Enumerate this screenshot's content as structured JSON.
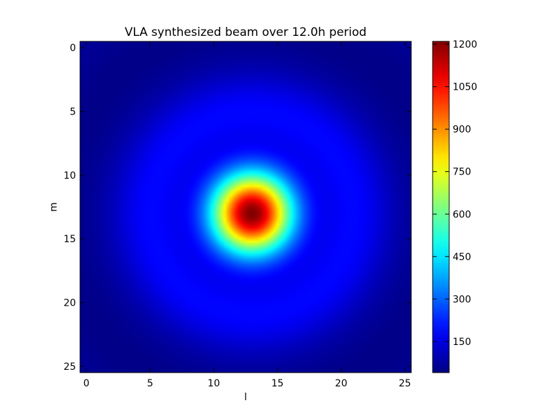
{
  "chart_data": {
    "type": "heatmap",
    "title": "VLA synthesized beam over 12.0h period",
    "xlabel": "l",
    "ylabel": "m",
    "grid_size": [
      26,
      26
    ],
    "x_range": [
      -0.5,
      25.5
    ],
    "y_range": [
      -0.5,
      25.5
    ],
    "y_inverted": true,
    "x_ticks": [
      0,
      5,
      10,
      15,
      20,
      25
    ],
    "y_ticks": [
      0,
      5,
      10,
      15,
      20,
      25
    ],
    "colormap": "jet",
    "colorbar": {
      "min": 40,
      "max": 1210,
      "ticks": [
        150,
        300,
        450,
        600,
        750,
        900,
        1050,
        1200
      ]
    },
    "peak": {
      "x": 13,
      "y": 13,
      "value": 1210
    },
    "main_lobe_half_width": 2.2,
    "first_ring_radius": 8,
    "background_value": 75,
    "ring_value": 190,
    "legend_position": "right"
  }
}
